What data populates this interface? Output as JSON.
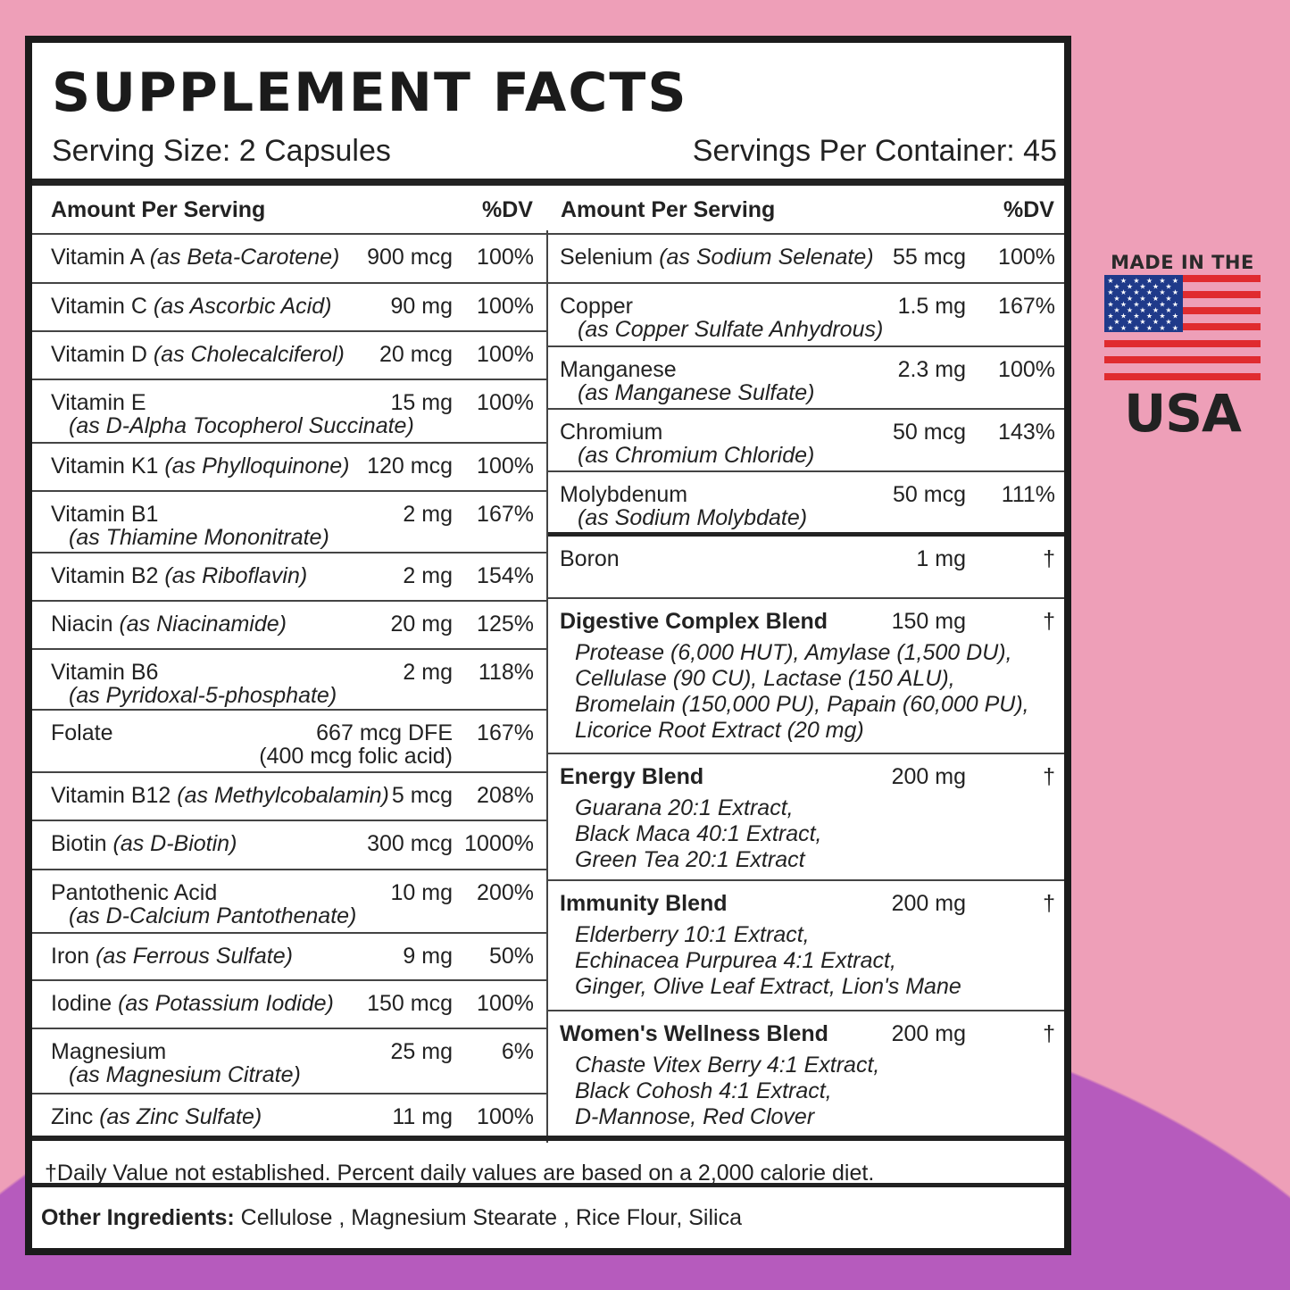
{
  "title": "SUPPLEMENT FACTS",
  "serving_size": "Serving Size: 2 Capsules",
  "servings_per_container": "Servings Per Container: 45",
  "col_header": {
    "amount": "Amount Per Serving",
    "dv": "%DV"
  },
  "left_rows": [
    {
      "name": "Vitamin A",
      "sub": "(as Beta-Carotene)",
      "amount": "900 mcg",
      "dv": "100%"
    },
    {
      "name": "Vitamin C",
      "sub": "(as Ascorbic Acid)",
      "amount": "90 mg",
      "dv": "100%"
    },
    {
      "name": "Vitamin D",
      "sub": "(as Cholecalciferol)",
      "amount": "20 mcg",
      "dv": "100%"
    },
    {
      "name": "Vitamin E",
      "sub2": "(as D-Alpha Tocopherol Succinate)",
      "amount": "15 mg",
      "dv": "100%"
    },
    {
      "name": "Vitamin K1",
      "sub": "(as Phylloquinone)",
      "amount": "120 mcg",
      "dv": "100%"
    },
    {
      "name": "Vitamin B1",
      "sub2": "(as Thiamine Mononitrate)",
      "amount": "2 mg",
      "dv": "167%"
    },
    {
      "name": "Vitamin B2",
      "sub": "(as Riboflavin)",
      "amount": "2 mg",
      "dv": "154%"
    },
    {
      "name": "Niacin",
      "sub": "(as Niacinamide)",
      "amount": "20 mg",
      "dv": "125%"
    },
    {
      "name": "Vitamin B6",
      "sub2": "(as Pyridoxal-5-phosphate)",
      "amount": "2 mg",
      "dv": "118%"
    },
    {
      "name": "Folate",
      "amount": "667 mcg DFE",
      "amount2": "(400 mcg folic acid)",
      "dv": "167%"
    },
    {
      "name": "Vitamin B12",
      "sub": "(as Methylcobalamin)",
      "amount": "5 mcg",
      "dv": "208%"
    },
    {
      "name": "Biotin",
      "sub": "(as D-Biotin)",
      "amount": "300 mcg",
      "dv": "1000%"
    },
    {
      "name": "Pantothenic Acid",
      "sub2": "(as D-Calcium Pantothenate)",
      "amount": "10 mg",
      "dv": "200%"
    },
    {
      "name": "Iron",
      "sub": "(as Ferrous Sulfate)",
      "amount": "9 mg",
      "dv": "50%"
    },
    {
      "name": "Iodine",
      "sub": "(as Potassium Iodide)",
      "amount": "150 mcg",
      "dv": "100%"
    },
    {
      "name": "Magnesium",
      "sub2": "(as Magnesium Citrate)",
      "amount": "25 mg",
      "dv": "6%"
    },
    {
      "name": "Zinc",
      "sub": "(as Zinc Sulfate)",
      "amount": "11 mg",
      "dv": "100%"
    }
  ],
  "right_rows": [
    {
      "name": "Selenium",
      "sub": "(as Sodium Selenate)",
      "amount": "55 mcg",
      "dv": "100%"
    },
    {
      "name": "Copper",
      "sub2": "(as Copper Sulfate Anhydrous)",
      "amount": "1.5 mg",
      "dv": "167%"
    },
    {
      "name": "Manganese",
      "sub2": "(as Manganese Sulfate)",
      "amount": "2.3 mg",
      "dv": "100%"
    },
    {
      "name": "Chromium",
      "sub2": "(as Chromium Chloride)",
      "amount": "50 mcg",
      "dv": "143%"
    },
    {
      "name": "Molybdenum",
      "sub2": "(as Sodium Molybdate)",
      "amount": "50 mcg",
      "dv": "111%"
    },
    {
      "name": "Boron",
      "amount": "1 mg",
      "dv": "†"
    },
    {
      "name": "Digestive Complex Blend",
      "blend": true,
      "amount": "150 mg",
      "dv": "†",
      "ingredients": [
        "Protease (6,000 HUT), Amylase (1,500 DU),",
        "Cellulase (90 CU), Lactase (150 ALU),",
        "Bromelain (150,000 PU), Papain (60,000 PU),",
        "Licorice Root Extract (20 mg)"
      ]
    },
    {
      "name": "Energy Blend",
      "blend": true,
      "amount": "200 mg",
      "dv": "†",
      "ingredients": [
        "Guarana 20:1 Extract,",
        "Black Maca 40:1 Extract,",
        "Green Tea 20:1 Extract"
      ]
    },
    {
      "name": "Immunity Blend",
      "blend": true,
      "amount": "200 mg",
      "dv": "†",
      "ingredients": [
        "Elderberry 10:1 Extract,",
        "Echinacea Purpurea 4:1 Extract,",
        "Ginger, Olive Leaf Extract, Lion's Mane"
      ]
    },
    {
      "name": "Women's Wellness Blend",
      "blend": true,
      "amount": "200 mg",
      "dv": "†",
      "ingredients": [
        "Chaste Vitex Berry 4:1 Extract,",
        "Black Cohosh 4:1 Extract,",
        "D-Mannose, Red Clover"
      ]
    }
  ],
  "footnote": "†Daily Value not established. Percent daily values are based on a 2,000 calorie diet.",
  "other_ingredients": {
    "label": "Other Ingredients:",
    "value": " Cellulose , Magnesium Stearate , Rice Flour, Silica"
  },
  "badge": {
    "top": "MADE IN THE",
    "bottom": "USA"
  },
  "colors": {
    "pink": "#ee9fb8",
    "purple": "#b65bbd",
    "flag_red": "#e02b2f",
    "flag_blue": "#1f3a8a"
  }
}
